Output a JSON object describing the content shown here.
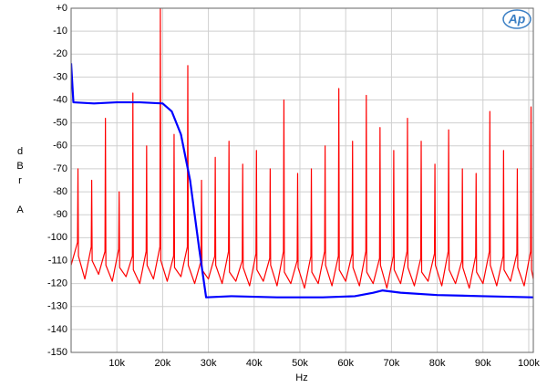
{
  "chart_data": {
    "type": "line",
    "x_label": "Hz",
    "y_label": "dBr A",
    "logo": "Ap",
    "xlim": [
      0,
      101000
    ],
    "ylim": [
      -150,
      0
    ],
    "xticks": [
      {
        "value": 10000,
        "label": "10k"
      },
      {
        "value": 20000,
        "label": "20k"
      },
      {
        "value": 30000,
        "label": "30k"
      },
      {
        "value": 40000,
        "label": "40k"
      },
      {
        "value": 50000,
        "label": "50k"
      },
      {
        "value": 60000,
        "label": "60k"
      },
      {
        "value": 70000,
        "label": "70k"
      },
      {
        "value": 80000,
        "label": "80k"
      },
      {
        "value": 90000,
        "label": "90k"
      },
      {
        "value": 100000,
        "label": "100k"
      }
    ],
    "yticks": [
      {
        "value": 0,
        "label": "+0"
      },
      -10,
      -20,
      -30,
      -40,
      -50,
      -60,
      -70,
      -80,
      -90,
      -100,
      -110,
      -120,
      -130,
      -140,
      -150
    ],
    "grid": true,
    "series": [
      {
        "color": "#ff0000",
        "x": [
          0,
          1400,
          1500,
          1600,
          3000,
          4400,
          4500,
          4600,
          6000,
          7400,
          7500,
          7600,
          9000,
          10400,
          10500,
          10600,
          12000,
          13400,
          13500,
          13600,
          15000,
          16400,
          16500,
          16600,
          18000,
          19400,
          19500,
          19600,
          21000,
          22400,
          22500,
          22600,
          24000,
          25400,
          25500,
          25600,
          27000,
          28400,
          28500,
          28600,
          30000,
          31400,
          31500,
          31600,
          33000,
          34400,
          34500,
          34600,
          36000,
          37400,
          37500,
          37600,
          39000,
          40400,
          40500,
          40600,
          42000,
          43400,
          43500,
          43600,
          45000,
          46400,
          46500,
          46600,
          48000,
          49400,
          49500,
          49600,
          51000,
          52400,
          52500,
          52600,
          54000,
          55400,
          55500,
          55600,
          57000,
          58400,
          58500,
          58600,
          60000,
          61400,
          61500,
          61600,
          63000,
          64400,
          64500,
          64600,
          66000,
          67400,
          67500,
          67600,
          69000,
          70400,
          70500,
          70600,
          72000,
          73400,
          73500,
          73600,
          75000,
          76400,
          76500,
          76600,
          78000,
          79400,
          79500,
          79600,
          81000,
          82400,
          82500,
          82600,
          84000,
          85400,
          85500,
          85600,
          87000,
          88400,
          88500,
          88600,
          90000,
          91400,
          91500,
          91600,
          93000,
          94400,
          94500,
          94600,
          96000,
          97400,
          97500,
          97600,
          99000,
          100400,
          100500,
          100600,
          101000
        ],
        "values": [
          -112,
          -102,
          -70,
          -108,
          -118,
          -104,
          -75,
          -110,
          -116,
          -106,
          -48,
          -112,
          -119,
          -105,
          -80,
          -113,
          -117,
          -108,
          -37,
          -114,
          -120,
          -106,
          -60,
          -112,
          -118,
          -104,
          0,
          -110,
          -119,
          -108,
          -55,
          -113,
          -117,
          -104,
          -25,
          -112,
          -120,
          -110,
          -75,
          -114,
          -118,
          -108,
          -65,
          -112,
          -120,
          -106,
          -58,
          -115,
          -119,
          -110,
          -68,
          -113,
          -121,
          -107,
          -62,
          -114,
          -119,
          -109,
          -70,
          -112,
          -121,
          -106,
          -40,
          -115,
          -120,
          -110,
          -72,
          -113,
          -122,
          -108,
          -70,
          -115,
          -120,
          -106,
          -60,
          -112,
          -121,
          -108,
          -35,
          -114,
          -119,
          -107,
          -58,
          -113,
          -121,
          -106,
          -38,
          -115,
          -120,
          -109,
          -52,
          -112,
          -122,
          -108,
          -62,
          -114,
          -120,
          -106,
          -48,
          -113,
          -121,
          -109,
          -58,
          -115,
          -119,
          -107,
          -68,
          -112,
          -121,
          -106,
          -53,
          -114,
          -120,
          -110,
          -70,
          -113,
          -122,
          -108,
          -72,
          -115,
          -120,
          -106,
          -45,
          -112,
          -121,
          -108,
          -62,
          -114,
          -119,
          -107,
          -70,
          -113,
          -121,
          -106,
          -43,
          -114,
          -118
        ]
      },
      {
        "color": "#0000ff",
        "x": [
          0,
          500,
          5000,
          10000,
          15000,
          20000,
          22000,
          24000,
          26000,
          28000,
          29500,
          35000,
          45000,
          55000,
          62000,
          66000,
          68000,
          72000,
          80000,
          90000,
          101000
        ],
        "values": [
          -24,
          -41,
          -41.5,
          -41,
          -41,
          -41.5,
          -45,
          -55,
          -75,
          -105,
          -126,
          -125.5,
          -126,
          -126,
          -125.5,
          -124,
          -123,
          -124,
          -125,
          -125.5,
          -126
        ]
      }
    ]
  }
}
